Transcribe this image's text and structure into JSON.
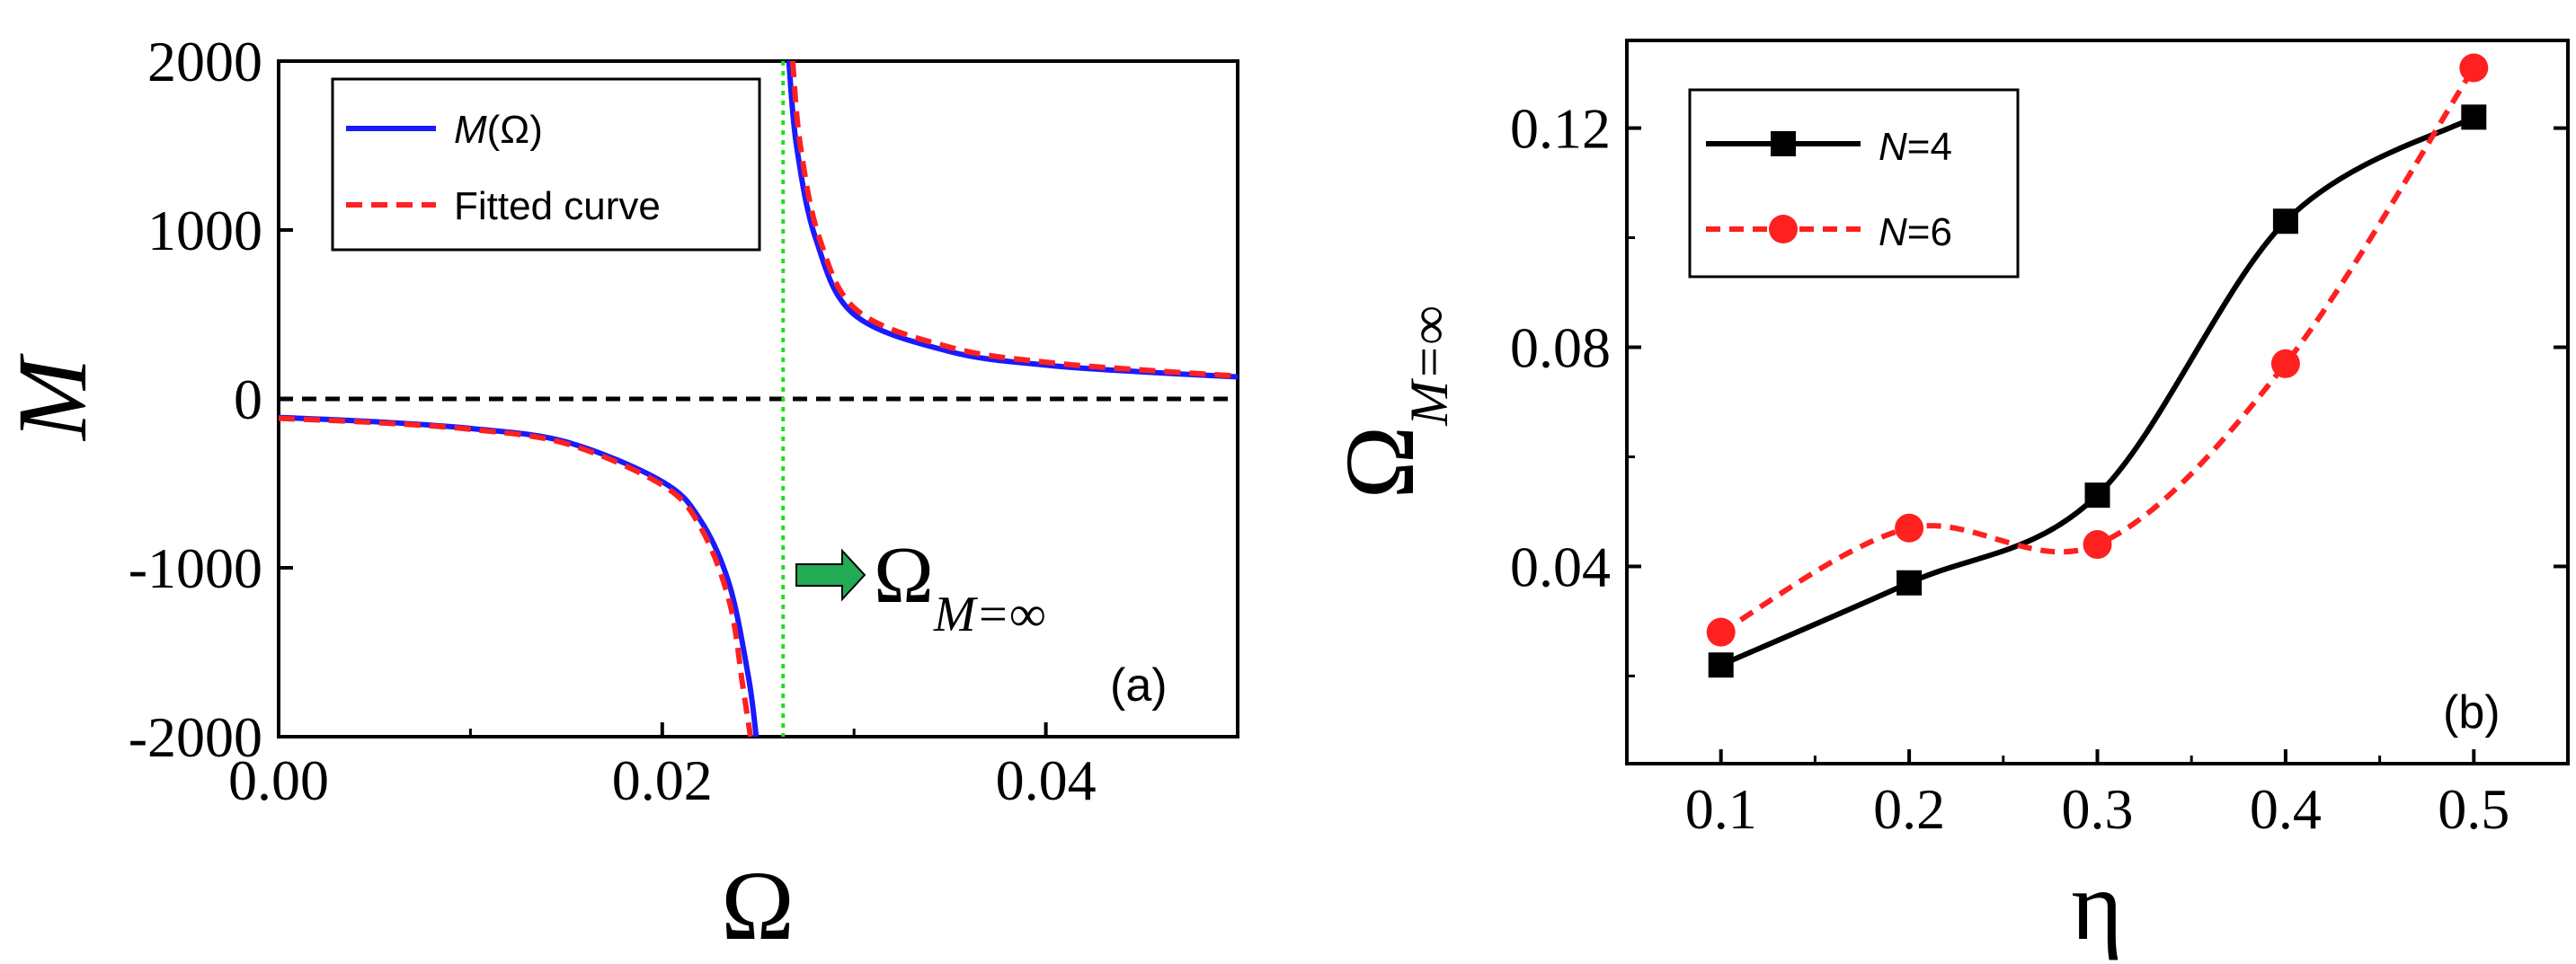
{
  "chart_data": [
    {
      "panel": "(a)",
      "type": "line",
      "xlabel": "Ω",
      "ylabel": "M",
      "xlim": [
        0,
        0.05
      ],
      "ylim": [
        -2000,
        2000
      ],
      "xticks": [
        "0.00",
        "0.02",
        "0.04"
      ],
      "yticks": [
        "-2000",
        "-1000",
        "0",
        "1000",
        "2000"
      ],
      "legend_position": "top-left",
      "legend": [
        {
          "label_italic": "M",
          "label_rest": "(Ω)",
          "color": "#1a1aff",
          "style": "solid"
        },
        {
          "label": "Fitted curve",
          "color": "#ff2020",
          "style": "dashed"
        }
      ],
      "pole_x": 0.0263,
      "pole_line_color": "#22dd22",
      "series": [
        {
          "name": "M(Ω)",
          "x": [
            0,
            0.005,
            0.01,
            0.015,
            0.02,
            0.022,
            0.0235,
            0.0245,
            0.0249,
            0.0266,
            0.027,
            0.028,
            0.03,
            0.035,
            0.04,
            0.045,
            0.05
          ],
          "y": [
            -110,
            -135,
            -175,
            -255,
            -490,
            -720,
            -1100,
            -1650,
            -2000,
            2000,
            1500,
            950,
            500,
            280,
            200,
            160,
            130
          ]
        },
        {
          "name": "Fitted curve",
          "x": [
            0,
            0.005,
            0.01,
            0.015,
            0.02,
            0.022,
            0.0235,
            0.0242,
            0.0246,
            0.0268,
            0.0272,
            0.0282,
            0.0302,
            0.0352,
            0.0402,
            0.0452,
            0.05
          ],
          "y": [
            -115,
            -140,
            -180,
            -265,
            -510,
            -760,
            -1200,
            -1700,
            -2000,
            2000,
            1500,
            950,
            520,
            300,
            215,
            170,
            135
          ]
        }
      ],
      "zero_line_color": "#000000",
      "annotation": {
        "text": "Ω",
        "subscript": "M=∞",
        "arrow_color": "#22aa55"
      }
    },
    {
      "panel": "(b)",
      "type": "line",
      "xlabel": "η",
      "ylabel": "Ω",
      "ylabel_subscript": "M=∞",
      "xlim": [
        0.05,
        0.55
      ],
      "ylim": [
        0.004,
        0.136
      ],
      "xticks": [
        "0.1",
        "0.2",
        "0.3",
        "0.4",
        "0.5"
      ],
      "yticks": [
        "0.04",
        "0.08",
        "0.12"
      ],
      "legend_position": "top-left",
      "series": [
        {
          "name_italic": "N",
          "name_rest": "=4",
          "color": "#000000",
          "marker": "square",
          "style": "solid",
          "x": [
            0.1,
            0.2,
            0.3,
            0.4,
            0.5
          ],
          "y": [
            0.022,
            0.037,
            0.053,
            0.103,
            0.122
          ]
        },
        {
          "name_italic": "N",
          "name_rest": "=6",
          "color": "#ff2020",
          "marker": "circle",
          "style": "dashed",
          "x": [
            0.1,
            0.2,
            0.3,
            0.4,
            0.5
          ],
          "y": [
            0.028,
            0.047,
            0.044,
            0.077,
            0.131
          ]
        }
      ]
    }
  ]
}
